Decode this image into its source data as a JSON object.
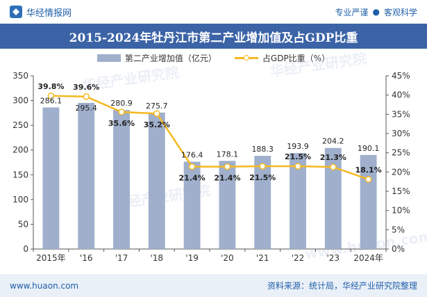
{
  "header": {
    "brand_name": "华经情报网",
    "tagline_left": "专业严谨",
    "tagline_sep": "●",
    "tagline_right": "客观科学"
  },
  "footer": {
    "url": "www.huaon.com",
    "source": "资料来源：统计局，华经产业研究院整理"
  },
  "watermarks": [
    "华经产业研究院",
    "华经产业研究院",
    "华经产业研究院",
    "www.huaon.com"
  ],
  "colors": {
    "bar": "#9fafcc",
    "line": "#f5b921",
    "title_band": "#3b63a6",
    "brand": "#1f5fa8",
    "footer_band": "#eaf0f8"
  },
  "chart_data": {
    "type": "bar",
    "title": "2015-2024年牡丹江市第二产业增加值及占GDP比重",
    "categories": [
      "2015年",
      "'16",
      "'17",
      "'18",
      "'19",
      "'20",
      "'21",
      "'22",
      "'23",
      "2024年"
    ],
    "series": [
      {
        "name": "第二产业增加值（亿元）",
        "type": "bar",
        "axis": "left",
        "values": [
          286.1,
          295.4,
          280.9,
          275.7,
          176.4,
          178.1,
          188.3,
          193.9,
          204.2,
          190.1
        ],
        "labels": [
          "286.1",
          "295.4",
          "280.9",
          "275.7",
          "176.4",
          "178.1",
          "188.3",
          "193.9",
          "204.2",
          "190.1"
        ]
      },
      {
        "name": "占GDP比重（%）",
        "type": "line",
        "axis": "right",
        "values": [
          39.8,
          39.6,
          35.6,
          35.2,
          21.4,
          21.4,
          21.5,
          21.5,
          21.3,
          18.1
        ],
        "labels": [
          "39.8%",
          "39.6%",
          "35.6%",
          "35.2%",
          "21.4%",
          "21.4%",
          "21.5%",
          "21.5%",
          "21.3%",
          "18.1%"
        ]
      }
    ],
    "y_left": {
      "min": 0,
      "max": 350,
      "ticks": [
        "0",
        "50",
        "100",
        "150",
        "200",
        "250",
        "300",
        "350"
      ]
    },
    "y_right": {
      "min": 0,
      "max": 45,
      "ticks": [
        "0%",
        "5%",
        "10%",
        "15%",
        "20%",
        "25%",
        "30%",
        "35%",
        "40%",
        "45%"
      ]
    },
    "grid": false,
    "legend_position": "top-center"
  }
}
